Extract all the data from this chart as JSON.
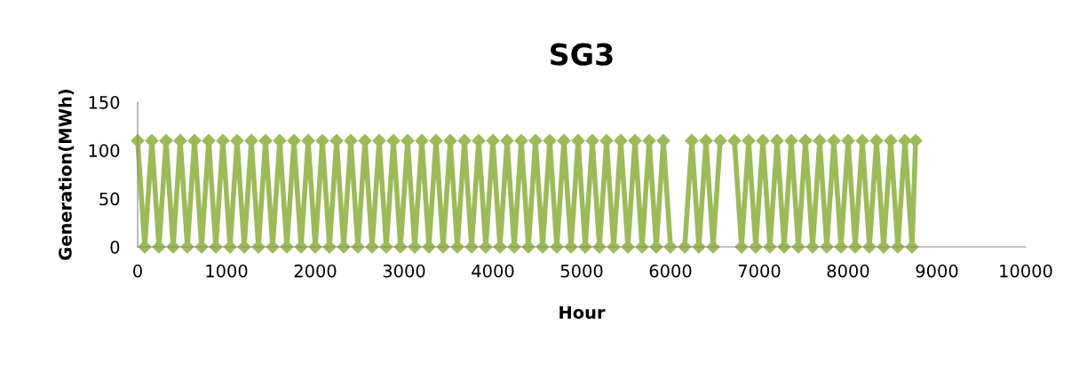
{
  "chart_data": {
    "type": "line",
    "title": "SG3",
    "xlabel": "Hour",
    "ylabel": "Generation(MWh)",
    "x": [
      0,
      80,
      160,
      240,
      320,
      400,
      480,
      560,
      640,
      720,
      800,
      880,
      960,
      1040,
      1120,
      1200,
      1280,
      1360,
      1440,
      1520,
      1600,
      1680,
      1760,
      1840,
      1920,
      2000,
      2080,
      2160,
      2240,
      2320,
      2400,
      2480,
      2560,
      2640,
      2720,
      2800,
      2880,
      2960,
      3040,
      3120,
      3200,
      3280,
      3360,
      3440,
      3520,
      3600,
      3680,
      3760,
      3840,
      3920,
      4000,
      4080,
      4160,
      4240,
      4320,
      4400,
      4480,
      4560,
      4640,
      4720,
      4800,
      4880,
      4960,
      5040,
      5120,
      5200,
      5280,
      5360,
      5440,
      5520,
      5600,
      5680,
      5760,
      5840,
      5920,
      6000,
      6080,
      6160,
      6240,
      6320,
      6400,
      6480,
      6560,
      6640,
      6720,
      6800,
      6880,
      6960,
      7040,
      7120,
      7200,
      7280,
      7360,
      7440,
      7520,
      7600,
      7680,
      7760,
      7840,
      7920,
      8000,
      8080,
      8160,
      8240,
      8320,
      8400,
      8480,
      8560,
      8640,
      8720,
      8760
    ],
    "series": [
      {
        "color": "#9bbb59",
        "values": [
          110,
          0,
          110,
          0,
          110,
          0,
          110,
          0,
          110,
          0,
          110,
          0,
          110,
          0,
          110,
          0,
          110,
          0,
          110,
          0,
          110,
          0,
          110,
          0,
          110,
          0,
          110,
          0,
          110,
          0,
          110,
          0,
          110,
          0,
          110,
          0,
          110,
          0,
          110,
          0,
          110,
          0,
          110,
          0,
          110,
          0,
          110,
          0,
          110,
          0,
          110,
          0,
          110,
          0,
          110,
          0,
          110,
          0,
          110,
          0,
          110,
          0,
          110,
          0,
          110,
          0,
          110,
          0,
          110,
          0,
          110,
          0,
          110,
          0,
          110,
          0,
          null,
          0,
          110,
          0,
          110,
          0,
          110,
          null,
          110,
          0,
          110,
          0,
          110,
          0,
          110,
          0,
          110,
          0,
          110,
          0,
          110,
          0,
          110,
          0,
          110,
          0,
          110,
          0,
          110,
          0,
          110,
          0,
          110,
          0,
          110
        ]
      }
    ],
    "xlim": [
      0,
      10000
    ],
    "xticks": [
      0,
      1000,
      2000,
      3000,
      4000,
      5000,
      6000,
      7000,
      8000,
      9000,
      10000
    ],
    "ylim": [
      0,
      150
    ],
    "yticks": [
      0,
      50,
      100,
      150
    ],
    "marker": "diamond",
    "line_style": "solid",
    "grid": false,
    "legend": false
  }
}
